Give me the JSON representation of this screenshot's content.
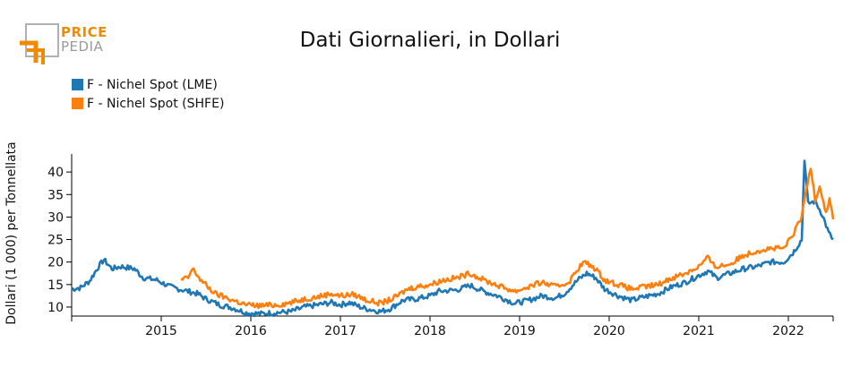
{
  "logo": {
    "line1": "PRICE",
    "line2": "PEDIA",
    "accent": "#f08a00",
    "gray": "#9a9a9a"
  },
  "chart_data": {
    "type": "line",
    "title": "Dati Giornalieri, in Dollari",
    "ylabel": "Dollari (1 000) per Tonnellata",
    "xlabel": "",
    "ylim": [
      8,
      44
    ],
    "yticks": [
      10,
      15,
      20,
      25,
      30,
      35,
      40
    ],
    "xlim": [
      2014.0,
      2022.5
    ],
    "xticks": [
      2015,
      2016,
      2017,
      2018,
      2019,
      2020,
      2021,
      2022
    ],
    "xtick_labels": [
      "2015",
      "2016",
      "2017",
      "2018",
      "2019",
      "2020",
      "2021",
      "2022"
    ],
    "grid": false,
    "legend_position": "top-left",
    "series": [
      {
        "name": "F - Nichel Spot (LME)",
        "color": "#1f77b4",
        "points": [
          [
            2014.0,
            14.0
          ],
          [
            2014.1,
            14.3
          ],
          [
            2014.2,
            15.8
          ],
          [
            2014.3,
            19.0
          ],
          [
            2014.36,
            20.5
          ],
          [
            2014.45,
            18.5
          ],
          [
            2014.55,
            19.0
          ],
          [
            2014.7,
            18.5
          ],
          [
            2014.8,
            16.5
          ],
          [
            2014.95,
            16.0
          ],
          [
            2015.1,
            14.5
          ],
          [
            2015.3,
            13.5
          ],
          [
            2015.4,
            13.0
          ],
          [
            2015.5,
            11.8
          ],
          [
            2015.65,
            10.5
          ],
          [
            2015.8,
            9.8
          ],
          [
            2015.95,
            8.7
          ],
          [
            2016.1,
            8.5
          ],
          [
            2016.25,
            8.7
          ],
          [
            2016.45,
            9.0
          ],
          [
            2016.6,
            10.0
          ],
          [
            2016.75,
            10.5
          ],
          [
            2016.9,
            11.0
          ],
          [
            2017.0,
            10.5
          ],
          [
            2017.1,
            11.0
          ],
          [
            2017.25,
            9.8
          ],
          [
            2017.45,
            9.0
          ],
          [
            2017.55,
            9.6
          ],
          [
            2017.7,
            11.5
          ],
          [
            2017.85,
            11.8
          ],
          [
            2018.0,
            12.5
          ],
          [
            2018.1,
            13.5
          ],
          [
            2018.3,
            13.8
          ],
          [
            2018.45,
            14.8
          ],
          [
            2018.6,
            13.5
          ],
          [
            2018.75,
            12.5
          ],
          [
            2018.95,
            10.8
          ],
          [
            2019.1,
            11.5
          ],
          [
            2019.25,
            12.5
          ],
          [
            2019.4,
            12.0
          ],
          [
            2019.5,
            13.0
          ],
          [
            2019.65,
            16.0
          ],
          [
            2019.75,
            17.5
          ],
          [
            2019.85,
            16.5
          ],
          [
            2019.95,
            14.0
          ],
          [
            2020.1,
            12.5
          ],
          [
            2020.25,
            11.5
          ],
          [
            2020.4,
            12.3
          ],
          [
            2020.55,
            13.0
          ],
          [
            2020.7,
            14.5
          ],
          [
            2020.85,
            15.5
          ],
          [
            2021.0,
            17.0
          ],
          [
            2021.1,
            18.0
          ],
          [
            2021.2,
            16.5
          ],
          [
            2021.35,
            17.5
          ],
          [
            2021.5,
            18.5
          ],
          [
            2021.65,
            19.0
          ],
          [
            2021.8,
            20.0
          ],
          [
            2021.95,
            20.0
          ],
          [
            2022.05,
            22.0
          ],
          [
            2022.15,
            25.0
          ],
          [
            2022.18,
            43.0
          ],
          [
            2022.22,
            33.0
          ],
          [
            2022.3,
            33.5
          ],
          [
            2022.38,
            30.5
          ],
          [
            2022.45,
            26.5
          ],
          [
            2022.5,
            25.0
          ]
        ]
      },
      {
        "name": "F - Nichel Spot (SHFE)",
        "color": "#ff7f0e",
        "points": [
          [
            2015.22,
            16.0
          ],
          [
            2015.3,
            16.5
          ],
          [
            2015.35,
            18.5
          ],
          [
            2015.45,
            15.8
          ],
          [
            2015.6,
            13.0
          ],
          [
            2015.8,
            11.5
          ],
          [
            2015.95,
            10.5
          ],
          [
            2016.1,
            10.3
          ],
          [
            2016.3,
            10.5
          ],
          [
            2016.45,
            11.0
          ],
          [
            2016.6,
            11.8
          ],
          [
            2016.75,
            12.3
          ],
          [
            2016.9,
            13.0
          ],
          [
            2017.0,
            12.5
          ],
          [
            2017.15,
            12.8
          ],
          [
            2017.3,
            11.5
          ],
          [
            2017.45,
            10.8
          ],
          [
            2017.6,
            12.0
          ],
          [
            2017.75,
            14.0
          ],
          [
            2017.85,
            14.5
          ],
          [
            2018.0,
            15.0
          ],
          [
            2018.15,
            16.0
          ],
          [
            2018.3,
            16.5
          ],
          [
            2018.45,
            17.5
          ],
          [
            2018.6,
            16.0
          ],
          [
            2018.8,
            14.5
          ],
          [
            2018.95,
            13.5
          ],
          [
            2019.1,
            14.5
          ],
          [
            2019.25,
            15.5
          ],
          [
            2019.4,
            14.5
          ],
          [
            2019.55,
            15.5
          ],
          [
            2019.65,
            18.5
          ],
          [
            2019.72,
            20.0
          ],
          [
            2019.85,
            18.5
          ],
          [
            2019.95,
            16.0
          ],
          [
            2020.1,
            15.0
          ],
          [
            2020.25,
            14.0
          ],
          [
            2020.4,
            14.5
          ],
          [
            2020.55,
            15.0
          ],
          [
            2020.7,
            16.5
          ],
          [
            2020.85,
            17.5
          ],
          [
            2021.0,
            19.0
          ],
          [
            2021.1,
            21.0
          ],
          [
            2021.18,
            19.0
          ],
          [
            2021.35,
            19.5
          ],
          [
            2021.5,
            21.5
          ],
          [
            2021.65,
            22.5
          ],
          [
            2021.8,
            23.0
          ],
          [
            2021.95,
            23.0
          ],
          [
            2022.05,
            26.0
          ],
          [
            2022.15,
            30.0
          ],
          [
            2022.2,
            36.0
          ],
          [
            2022.25,
            41.0
          ],
          [
            2022.3,
            34.0
          ],
          [
            2022.35,
            37.0
          ],
          [
            2022.42,
            31.0
          ],
          [
            2022.46,
            34.0
          ],
          [
            2022.5,
            29.5
          ]
        ]
      }
    ]
  }
}
